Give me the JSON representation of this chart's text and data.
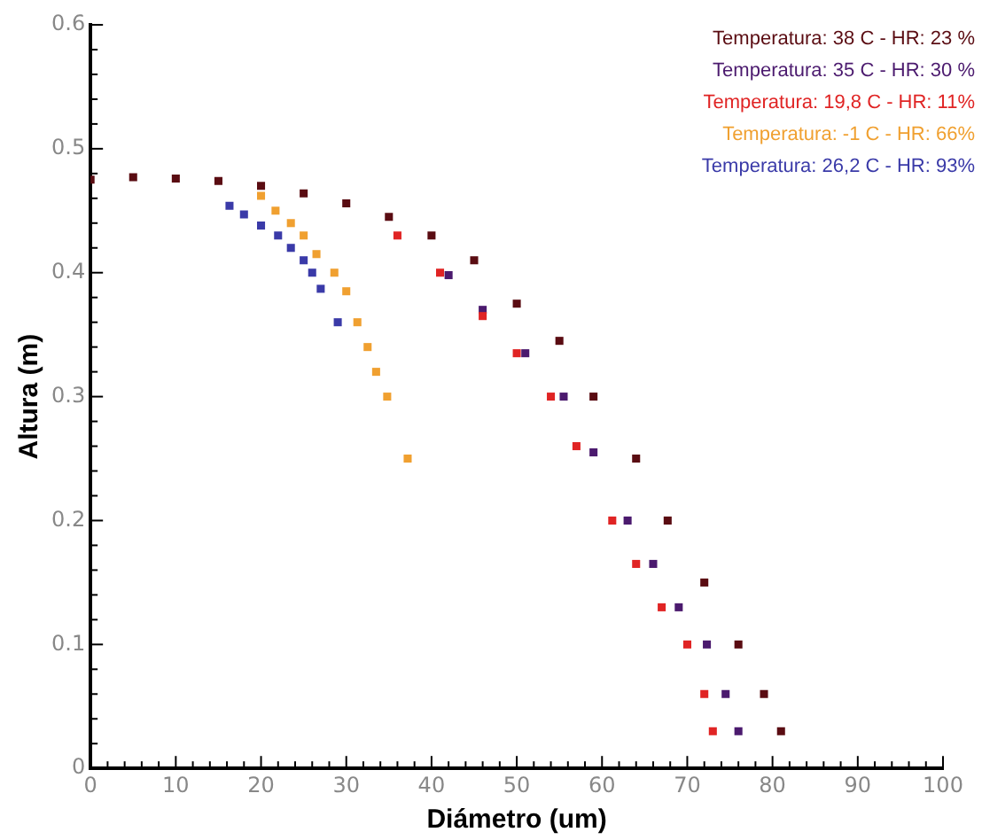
{
  "chart_data": {
    "type": "scatter",
    "xlabel": "Diámetro (um)",
    "ylabel": "Altura (m)",
    "xlim": [
      0,
      100
    ],
    "ylim": [
      0,
      0.6
    ],
    "xticks": [
      0,
      {
        "value": 2,
        "label": null
      },
      {
        "value": 4,
        "label": null
      },
      {
        "value": 6,
        "label": null
      },
      {
        "value": 8,
        "label": null
      },
      10,
      {
        "value": 12,
        "label": null
      },
      {
        "value": 14,
        "label": null
      },
      {
        "value": 16,
        "label": null
      },
      {
        "value": 18,
        "label": null
      },
      20,
      {
        "value": 22,
        "label": null
      },
      {
        "value": 24,
        "label": null
      },
      {
        "value": 26,
        "label": null
      },
      {
        "value": 28,
        "label": null
      },
      30,
      {
        "value": 32,
        "label": null
      },
      {
        "value": 34,
        "label": null
      },
      {
        "value": 36,
        "label": null
      },
      {
        "value": 38,
        "label": null
      },
      40,
      {
        "value": 42,
        "label": null
      },
      {
        "value": 44,
        "label": null
      },
      {
        "value": 46,
        "label": null
      },
      {
        "value": 48,
        "label": null
      },
      50,
      {
        "value": 52,
        "label": null
      },
      {
        "value": 54,
        "label": null
      },
      {
        "value": 56,
        "label": null
      },
      {
        "value": 58,
        "label": null
      },
      60,
      {
        "value": 62,
        "label": null
      },
      {
        "value": 64,
        "label": null
      },
      {
        "value": 66,
        "label": null
      },
      {
        "value": 68,
        "label": null
      },
      70,
      {
        "value": 72,
        "label": null
      },
      {
        "value": 74,
        "label": null
      },
      {
        "value": 76,
        "label": null
      },
      {
        "value": 78,
        "label": null
      },
      80,
      {
        "value": 82,
        "label": null
      },
      {
        "value": 84,
        "label": null
      },
      {
        "value": 86,
        "label": null
      },
      {
        "value": 88,
        "label": null
      },
      90,
      {
        "value": 92,
        "label": null
      },
      {
        "value": 94,
        "label": null
      },
      {
        "value": 96,
        "label": null
      },
      {
        "value": 98,
        "label": null
      },
      100
    ],
    "yticks": [
      0,
      {
        "value": 0.02,
        "label": null
      },
      {
        "value": 0.04,
        "label": null
      },
      {
        "value": 0.06,
        "label": null
      },
      {
        "value": 0.08,
        "label": null
      },
      0.1,
      {
        "value": 0.12,
        "label": null
      },
      {
        "value": 0.14,
        "label": null
      },
      {
        "value": 0.16,
        "label": null
      },
      {
        "value": 0.18,
        "label": null
      },
      0.2,
      {
        "value": 0.22,
        "label": null
      },
      {
        "value": 0.24,
        "label": null
      },
      {
        "value": 0.26,
        "label": null
      },
      {
        "value": 0.28,
        "label": null
      },
      0.3,
      {
        "value": 0.32,
        "label": null
      },
      {
        "value": 0.34,
        "label": null
      },
      {
        "value": 0.36,
        "label": null
      },
      {
        "value": 0.38,
        "label": null
      },
      0.4,
      {
        "value": 0.42,
        "label": null
      },
      {
        "value": 0.44,
        "label": null
      },
      {
        "value": 0.46,
        "label": null
      },
      {
        "value": 0.48,
        "label": null
      },
      0.5,
      {
        "value": 0.52,
        "label": null
      },
      {
        "value": 0.54,
        "label": null
      },
      {
        "value": 0.56,
        "label": null
      },
      {
        "value": 0.58,
        "label": null
      },
      0.6
    ],
    "grid": false,
    "legend": "top right",
    "marker": "square",
    "series": [
      {
        "name": "Temperatura: 19,8 C - HR: 11%",
        "color": "#e02424",
        "x": [
          36,
          41,
          46,
          50,
          54,
          57,
          61.2,
          64,
          67,
          70,
          72,
          73
        ],
        "values": [
          0.43,
          0.4,
          0.365,
          0.335,
          0.3,
          0.26,
          0.2,
          0.165,
          0.13,
          0.1,
          0.06,
          0.03
        ]
      },
      {
        "name": "Temperatura: 35 C - HR: 30 %",
        "color": "#4b1a6e",
        "x": [
          42,
          46,
          51,
          55.5,
          59,
          63,
          66,
          69,
          72.3,
          74.5,
          76
        ],
        "values": [
          0.398,
          0.37,
          0.335,
          0.3,
          0.255,
          0.2,
          0.165,
          0.13,
          0.1,
          0.06,
          0.03
        ]
      },
      {
        "name": "Temperatura: 38 C - HR: 23 %",
        "color": "#5a0c12",
        "x": [
          0,
          5,
          10,
          15,
          20,
          25,
          30,
          35,
          40,
          45,
          50,
          55,
          59,
          64,
          67.7,
          72,
          76,
          79,
          81
        ],
        "values": [
          0.475,
          0.477,
          0.476,
          0.474,
          0.47,
          0.464,
          0.456,
          0.445,
          0.43,
          0.41,
          0.375,
          0.345,
          0.3,
          0.25,
          0.2,
          0.15,
          0.1,
          0.06,
          0.03
        ]
      },
      {
        "name": "Temperatura: -1 C - HR: 66%",
        "color": "#f0a030",
        "x": [
          20,
          21.7,
          23.5,
          25,
          26.5,
          28.6,
          30,
          31.3,
          32.5,
          33.5,
          34.8,
          37.2
        ],
        "values": [
          0.462,
          0.45,
          0.44,
          0.43,
          0.415,
          0.4,
          0.385,
          0.36,
          0.34,
          0.32,
          0.3,
          0.25
        ]
      },
      {
        "name": "Temperatura: 26,2 C - HR: 93%",
        "color": "#3a3aa8",
        "x": [
          16.3,
          18,
          20,
          22,
          23.5,
          25,
          26,
          27,
          29
        ],
        "values": [
          0.454,
          0.447,
          0.438,
          0.43,
          0.42,
          0.41,
          0.4,
          0.387,
          0.36
        ]
      }
    ]
  }
}
